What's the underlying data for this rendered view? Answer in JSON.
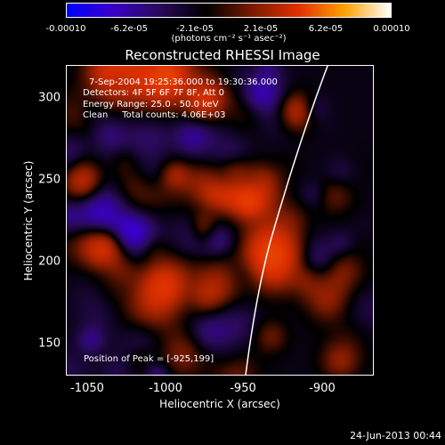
{
  "colorbar": {
    "ticks": [
      "-0.00010",
      "-6.2e-05",
      "-2.1e-05",
      "2.1e-05",
      "6.2e-05",
      "0.00010"
    ],
    "units": "(photons cm⁻² s⁻¹ asec⁻²)",
    "colormap": [
      "#0000ff",
      "#3a00c8",
      "#2a0a5a",
      "#000000",
      "#7a1a00",
      "#e03000",
      "#ffa000",
      "#ffffff"
    ]
  },
  "title": "Reconstructed RHESSI Image",
  "info": {
    "time_range": "7-Sep-2004 19:25:36.000 to 19:30:36.000",
    "detectors": "Detectors: 4F 5F 6F 7F 8F, Att 0",
    "energy": "Energy Range: 25.0 - 50.0 keV",
    "clean": "Clean     Total counts: 4.06E+03"
  },
  "peak_note": "Position of Peak = [-925,199]",
  "axes": {
    "xlabel": "Heliocentric X (arcsec)",
    "ylabel": "Heliocentric Y (arcsec)",
    "xticks": [
      "-1050",
      "-1000",
      "-950",
      "-900"
    ],
    "yticks": [
      "300",
      "250",
      "200",
      "150"
    ]
  },
  "datestamp": "24-Jun-2013 00:44"
}
